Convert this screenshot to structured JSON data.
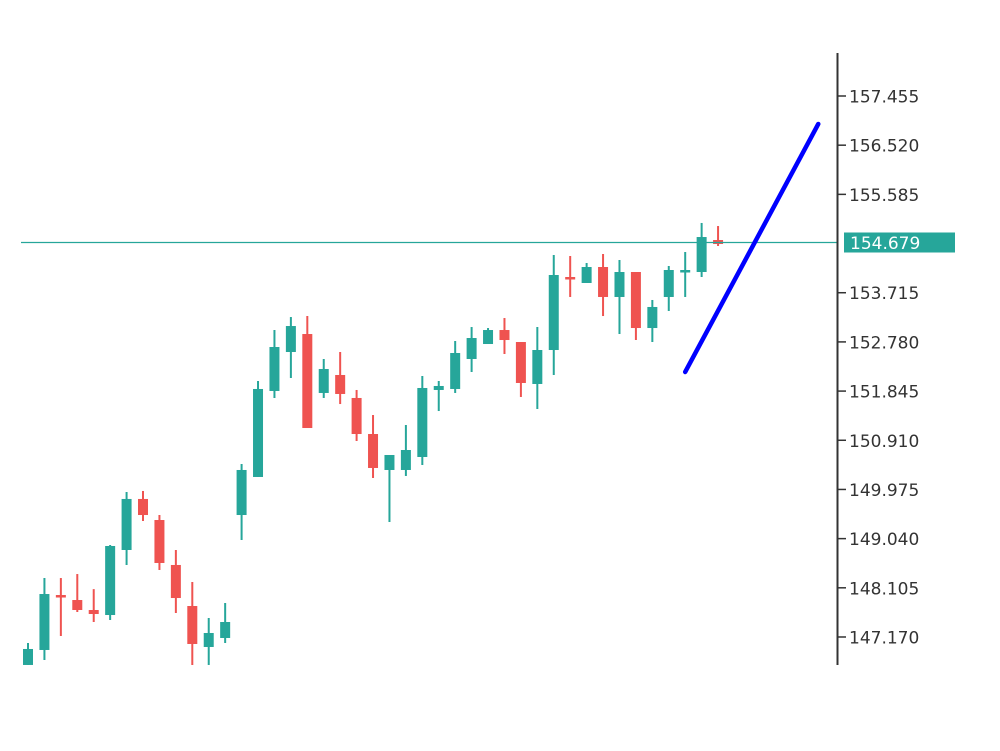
{
  "chart_data": {
    "type": "candlestick",
    "title": "",
    "xlabel": "",
    "ylabel": "",
    "grid": false,
    "legend": null,
    "y_axis": {
      "position": "right",
      "ticks": [
        "157.455",
        "156.520",
        "155.585",
        "153.715",
        "152.780",
        "151.845",
        "150.910",
        "149.975",
        "149.040",
        "148.105",
        "147.170"
      ],
      "ylim": [
        146.64,
        158.3
      ]
    },
    "current_price": {
      "value": "154.679",
      "label_bg": "#26a69a",
      "label_fg": "#ffffff",
      "line_color": "#26a69a"
    },
    "colors": {
      "up": "#26a69a",
      "down": "#ef5350",
      "trendline": "#0000ff",
      "axis": "#333333",
      "tick_text": "#333333"
    },
    "trendline": {
      "start": {
        "index": 40,
        "price": 152.208
      },
      "end": {
        "index": 48.1,
        "price": 156.923
      }
    },
    "candles": [
      {
        "o": 146.638,
        "h": 147.056,
        "l": 146.55,
        "c": 146.942
      },
      {
        "o": 146.923,
        "h": 148.291,
        "l": 146.733,
        "c": 147.987
      },
      {
        "o": 147.968,
        "h": 148.291,
        "l": 147.189,
        "c": 147.949
      },
      {
        "o": 147.873,
        "h": 148.367,
        "l": 147.645,
        "c": 147.683
      },
      {
        "o": 147.683,
        "h": 148.08,
        "l": 147.455,
        "c": 147.607
      },
      {
        "o": 147.588,
        "h": 148.919,
        "l": 147.493,
        "c": 148.9
      },
      {
        "o": 148.824,
        "h": 149.927,
        "l": 148.539,
        "c": 149.794
      },
      {
        "o": 149.794,
        "h": 149.946,
        "l": 149.375,
        "c": 149.489
      },
      {
        "o": 149.394,
        "h": 149.489,
        "l": 148.444,
        "c": 148.577
      },
      {
        "o": 148.539,
        "h": 148.824,
        "l": 147.626,
        "c": 147.911
      },
      {
        "o": 147.759,
        "h": 148.215,
        "l": 146.638,
        "c": 147.037
      },
      {
        "o": 146.98,
        "h": 147.531,
        "l": 146.638,
        "c": 147.246
      },
      {
        "o": 147.151,
        "h": 147.816,
        "l": 147.056,
        "c": 147.455
      },
      {
        "o": 149.489,
        "h": 150.459,
        "l": 149.014,
        "c": 150.345
      },
      {
        "o": 150.212,
        "h": 152.037,
        "l": 150.212,
        "c": 151.885
      },
      {
        "o": 151.847,
        "h": 153.006,
        "l": 151.714,
        "c": 152.683
      },
      {
        "o": 152.588,
        "h": 153.253,
        "l": 152.094,
        "c": 153.082
      },
      {
        "o": 152.93,
        "h": 153.272,
        "l": 151.143,
        "c": 151.143
      },
      {
        "o": 151.809,
        "h": 152.455,
        "l": 151.714,
        "c": 152.265
      },
      {
        "o": 152.151,
        "h": 152.588,
        "l": 151.599,
        "c": 151.79
      },
      {
        "o": 151.714,
        "h": 151.866,
        "l": 150.896,
        "c": 151.029
      },
      {
        "o": 151.029,
        "h": 151.39,
        "l": 150.193,
        "c": 150.383
      },
      {
        "o": 150.345,
        "h": 150.63,
        "l": 149.356,
        "c": 150.63
      },
      {
        "o": 150.345,
        "h": 151.2,
        "l": 150.231,
        "c": 150.725
      },
      {
        "o": 150.592,
        "h": 152.132,
        "l": 150.44,
        "c": 151.904
      },
      {
        "o": 151.866,
        "h": 152.037,
        "l": 151.466,
        "c": 151.942
      },
      {
        "o": 151.885,
        "h": 152.797,
        "l": 151.809,
        "c": 152.569
      },
      {
        "o": 152.455,
        "h": 153.063,
        "l": 152.208,
        "c": 152.854
      },
      {
        "o": 152.74,
        "h": 153.044,
        "l": 152.74,
        "c": 153.006
      },
      {
        "o": 153.006,
        "h": 153.234,
        "l": 152.55,
        "c": 152.816
      },
      {
        "o": 152.778,
        "h": 152.778,
        "l": 151.733,
        "c": 151.999
      },
      {
        "o": 151.98,
        "h": 153.063,
        "l": 151.505,
        "c": 152.626
      },
      {
        "o": 152.626,
        "h": 154.432,
        "l": 152.151,
        "c": 154.052
      },
      {
        "o": 154.014,
        "h": 154.413,
        "l": 153.634,
        "c": 153.995
      },
      {
        "o": 153.9,
        "h": 154.28,
        "l": 153.9,
        "c": 154.204
      },
      {
        "o": 154.204,
        "h": 154.451,
        "l": 153.272,
        "c": 153.634
      },
      {
        "o": 153.634,
        "h": 154.337,
        "l": 152.93,
        "c": 154.109
      },
      {
        "o": 154.109,
        "h": 154.109,
        "l": 152.816,
        "c": 153.044
      },
      {
        "o": 153.044,
        "h": 153.577,
        "l": 152.778,
        "c": 153.444
      },
      {
        "o": 153.634,
        "h": 154.223,
        "l": 153.368,
        "c": 154.147
      },
      {
        "o": 154.128,
        "h": 154.489,
        "l": 153.634,
        "c": 154.147
      },
      {
        "o": 154.109,
        "h": 155.041,
        "l": 154.014,
        "c": 154.774
      },
      {
        "o": 154.717,
        "h": 154.983,
        "l": 154.603,
        "c": 154.641
      }
    ]
  }
}
